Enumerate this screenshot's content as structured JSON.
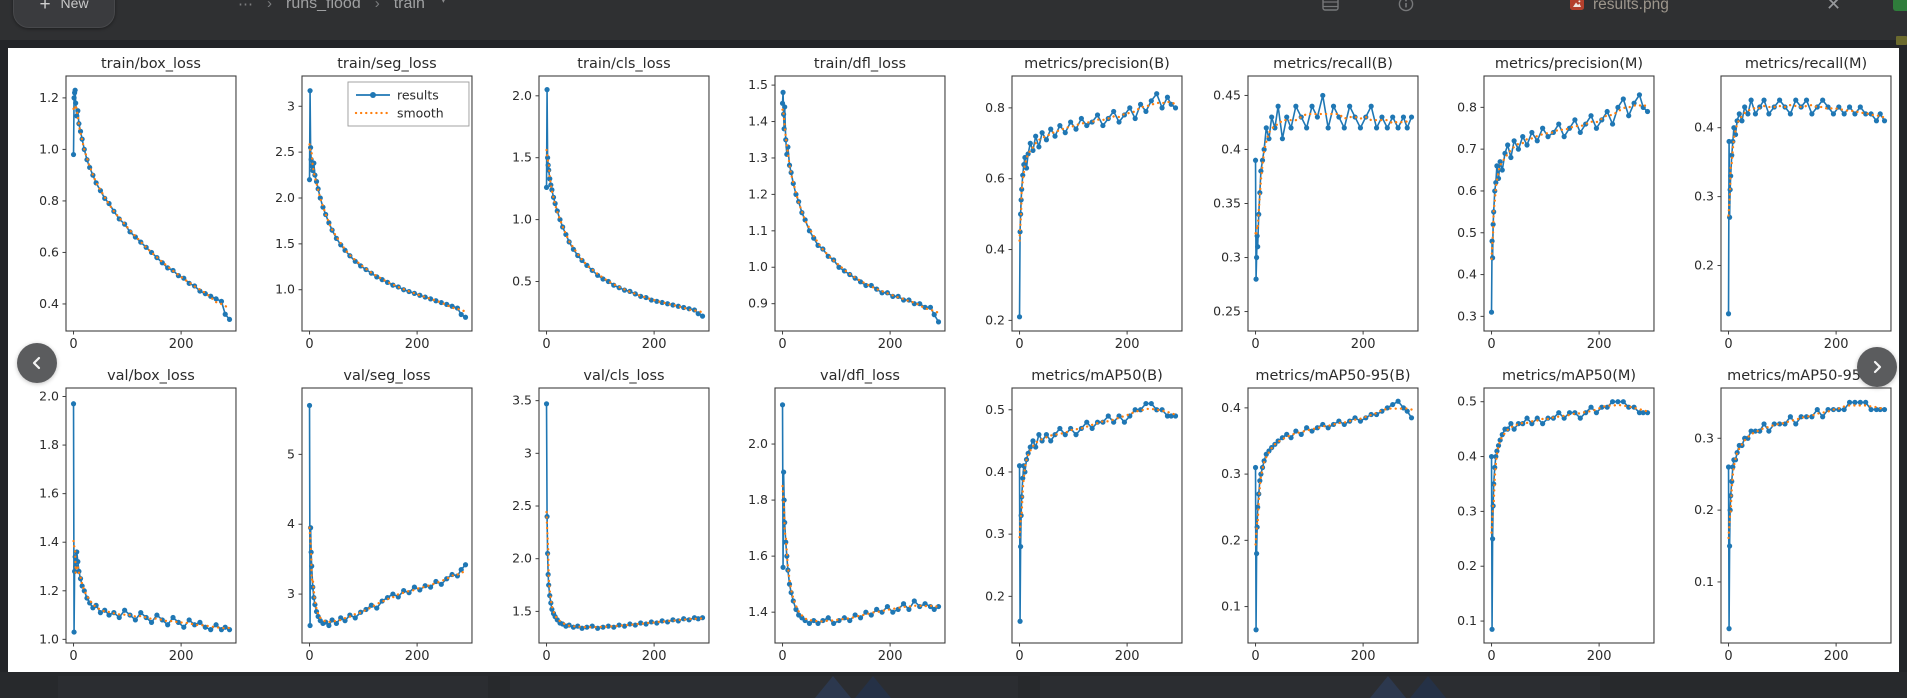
{
  "window": {
    "topbar": {
      "new_button_label": "New",
      "plus_glyph": "+",
      "breadcrumb_ellipsis": "⋯",
      "breadcrumb_separator": "›",
      "breadcrumb_items": [
        "runs_flood",
        "train"
      ],
      "breadcrumb_caret": "▾",
      "filename": "results.png",
      "close_glyph": "✕"
    }
  },
  "colors": {
    "results_line": "#1f77b4",
    "smooth_line": "#ff7f0e",
    "plot_text": "#2b2b2b",
    "spine": "#3f3f3f",
    "panel_bg": "#ffffff",
    "page_bg": "#232528",
    "topbar_bg": "#2f3032",
    "nav_circle": "#5b5c5e"
  },
  "legend": {
    "results_label": "results",
    "smooth_label": "smooth"
  },
  "epochs": [
    0,
    1,
    2,
    3,
    4,
    6,
    8,
    10,
    13,
    16,
    20,
    25,
    30,
    36,
    42,
    50,
    58,
    66,
    75,
    85,
    95,
    105,
    115,
    125,
    135,
    145,
    155,
    165,
    175,
    185,
    195,
    205,
    215,
    225,
    235,
    245,
    255,
    265,
    275,
    282,
    290
  ],
  "chart_data": [
    {
      "type": "line",
      "title": "train/box_loss",
      "ylim": [
        0.295,
        1.285
      ],
      "yticks": [
        0.4,
        0.6,
        0.8,
        1.0,
        1.2
      ],
      "xticks": [
        0,
        200
      ],
      "xlim": [
        -14,
        302
      ],
      "legend": false,
      "values": [
        0.98,
        1.2,
        1.22,
        1.23,
        1.18,
        1.13,
        1.15,
        1.1,
        1.07,
        1.04,
        1.0,
        0.96,
        0.93,
        0.9,
        0.87,
        0.84,
        0.81,
        0.79,
        0.76,
        0.73,
        0.71,
        0.68,
        0.66,
        0.64,
        0.62,
        0.6,
        0.58,
        0.56,
        0.54,
        0.53,
        0.51,
        0.5,
        0.48,
        0.47,
        0.45,
        0.44,
        0.43,
        0.42,
        0.41,
        0.36,
        0.34
      ]
    },
    {
      "type": "line",
      "title": "train/seg_loss",
      "ylim": [
        0.55,
        3.33
      ],
      "yticks": [
        1.0,
        1.5,
        2.0,
        2.5,
        3.0
      ],
      "xticks": [
        0,
        200
      ],
      "xlim": [
        -14,
        302
      ],
      "legend": true,
      "values": [
        2.2,
        3.17,
        2.55,
        2.42,
        2.35,
        2.3,
        2.38,
        2.25,
        2.18,
        2.1,
        2.0,
        1.9,
        1.82,
        1.73,
        1.65,
        1.56,
        1.49,
        1.43,
        1.37,
        1.31,
        1.26,
        1.22,
        1.18,
        1.14,
        1.11,
        1.08,
        1.05,
        1.03,
        1.0,
        0.98,
        0.96,
        0.94,
        0.92,
        0.9,
        0.88,
        0.86,
        0.84,
        0.82,
        0.8,
        0.73,
        0.7
      ]
    },
    {
      "type": "line",
      "title": "train/cls_loss",
      "ylim": [
        0.1,
        2.16
      ],
      "yticks": [
        0.5,
        1.0,
        1.5,
        2.0
      ],
      "xticks": [
        0,
        200
      ],
      "xlim": [
        -14,
        302
      ],
      "legend": false,
      "values": [
        1.26,
        2.05,
        1.5,
        1.44,
        1.4,
        1.33,
        1.28,
        1.24,
        1.18,
        1.13,
        1.07,
        1.0,
        0.94,
        0.88,
        0.82,
        0.76,
        0.71,
        0.67,
        0.63,
        0.59,
        0.55,
        0.52,
        0.5,
        0.47,
        0.45,
        0.43,
        0.42,
        0.4,
        0.38,
        0.37,
        0.35,
        0.34,
        0.33,
        0.32,
        0.31,
        0.3,
        0.29,
        0.28,
        0.27,
        0.24,
        0.22
      ]
    },
    {
      "type": "line",
      "title": "train/dfl_loss",
      "ylim": [
        0.825,
        1.525
      ],
      "yticks": [
        0.9,
        1.0,
        1.1,
        1.2,
        1.3,
        1.4,
        1.5
      ],
      "xticks": [
        0,
        200
      ],
      "xlim": [
        -14,
        302
      ],
      "legend": false,
      "values": [
        1.45,
        1.48,
        1.42,
        1.38,
        1.44,
        1.35,
        1.31,
        1.33,
        1.28,
        1.26,
        1.23,
        1.2,
        1.18,
        1.15,
        1.13,
        1.1,
        1.08,
        1.06,
        1.05,
        1.03,
        1.02,
        1.0,
        0.99,
        0.98,
        0.97,
        0.96,
        0.95,
        0.95,
        0.94,
        0.93,
        0.93,
        0.92,
        0.92,
        0.91,
        0.91,
        0.9,
        0.9,
        0.89,
        0.89,
        0.87,
        0.85
      ]
    },
    {
      "type": "line",
      "title": "metrics/precision(B)",
      "ylim": [
        0.17,
        0.89
      ],
      "yticks": [
        0.2,
        0.4,
        0.6,
        0.8
      ],
      "xticks": [
        0,
        200
      ],
      "xlim": [
        -14,
        302
      ],
      "legend": false,
      "values": [
        0.21,
        0.45,
        0.5,
        0.54,
        0.57,
        0.61,
        0.64,
        0.66,
        0.63,
        0.67,
        0.7,
        0.68,
        0.72,
        0.69,
        0.73,
        0.71,
        0.74,
        0.72,
        0.75,
        0.73,
        0.76,
        0.74,
        0.77,
        0.75,
        0.76,
        0.78,
        0.75,
        0.77,
        0.79,
        0.76,
        0.78,
        0.8,
        0.77,
        0.81,
        0.79,
        0.82,
        0.84,
        0.8,
        0.83,
        0.81,
        0.8
      ]
    },
    {
      "type": "line",
      "title": "metrics/recall(B)",
      "ylim": [
        0.232,
        0.468
      ],
      "yticks": [
        0.25,
        0.3,
        0.35,
        0.4,
        0.45
      ],
      "xticks": [
        0,
        200
      ],
      "xlim": [
        -14,
        302
      ],
      "legend": false,
      "values": [
        0.39,
        0.28,
        0.3,
        0.32,
        0.31,
        0.34,
        0.36,
        0.38,
        0.39,
        0.4,
        0.42,
        0.41,
        0.43,
        0.42,
        0.44,
        0.41,
        0.43,
        0.42,
        0.44,
        0.43,
        0.42,
        0.44,
        0.43,
        0.45,
        0.42,
        0.44,
        0.43,
        0.42,
        0.44,
        0.43,
        0.42,
        0.43,
        0.44,
        0.42,
        0.43,
        0.42,
        0.43,
        0.42,
        0.43,
        0.42,
        0.43
      ]
    },
    {
      "type": "line",
      "title": "metrics/precision(M)",
      "ylim": [
        0.265,
        0.875
      ],
      "yticks": [
        0.3,
        0.4,
        0.5,
        0.6,
        0.7,
        0.8
      ],
      "xticks": [
        0,
        200
      ],
      "xlim": [
        -14,
        302
      ],
      "legend": false,
      "values": [
        0.31,
        0.48,
        0.44,
        0.52,
        0.55,
        0.6,
        0.62,
        0.66,
        0.63,
        0.67,
        0.65,
        0.69,
        0.71,
        0.68,
        0.72,
        0.7,
        0.73,
        0.71,
        0.74,
        0.72,
        0.75,
        0.73,
        0.74,
        0.76,
        0.73,
        0.75,
        0.77,
        0.74,
        0.76,
        0.78,
        0.75,
        0.77,
        0.79,
        0.76,
        0.8,
        0.82,
        0.78,
        0.81,
        0.83,
        0.8,
        0.79
      ]
    },
    {
      "type": "line",
      "title": "metrics/recall(M)",
      "ylim": [
        0.105,
        0.475
      ],
      "yticks": [
        0.2,
        0.3,
        0.4
      ],
      "xticks": [
        0,
        200
      ],
      "xlim": [
        -14,
        302
      ],
      "legend": false,
      "values": [
        0.13,
        0.38,
        0.27,
        0.31,
        0.33,
        0.36,
        0.38,
        0.4,
        0.39,
        0.41,
        0.42,
        0.41,
        0.43,
        0.42,
        0.44,
        0.42,
        0.43,
        0.44,
        0.42,
        0.43,
        0.44,
        0.43,
        0.42,
        0.44,
        0.43,
        0.44,
        0.42,
        0.43,
        0.44,
        0.43,
        0.42,
        0.43,
        0.42,
        0.43,
        0.42,
        0.43,
        0.42,
        0.42,
        0.41,
        0.42,
        0.41
      ]
    },
    {
      "type": "line",
      "title": "val/box_loss",
      "ylim": [
        0.985,
        2.035
      ],
      "yticks": [
        1.0,
        1.2,
        1.4,
        1.6,
        1.8,
        2.0
      ],
      "xticks": [
        0,
        200
      ],
      "xlim": [
        -14,
        302
      ],
      "legend": false,
      "values": [
        1.97,
        1.03,
        1.28,
        1.34,
        1.3,
        1.36,
        1.32,
        1.28,
        1.25,
        1.22,
        1.2,
        1.17,
        1.15,
        1.13,
        1.14,
        1.11,
        1.12,
        1.1,
        1.11,
        1.09,
        1.12,
        1.1,
        1.08,
        1.11,
        1.09,
        1.07,
        1.1,
        1.08,
        1.06,
        1.09,
        1.07,
        1.05,
        1.08,
        1.06,
        1.07,
        1.05,
        1.04,
        1.06,
        1.04,
        1.05,
        1.04
      ]
    },
    {
      "type": "line",
      "title": "val/seg_loss",
      "ylim": [
        2.3,
        5.95
      ],
      "yticks": [
        3,
        4,
        5
      ],
      "xticks": [
        0,
        200
      ],
      "xlim": [
        -14,
        302
      ],
      "legend": false,
      "values": [
        5.7,
        2.55,
        3.95,
        3.6,
        3.4,
        3.1,
        2.95,
        2.85,
        2.75,
        2.68,
        2.62,
        2.58,
        2.6,
        2.55,
        2.63,
        2.58,
        2.66,
        2.62,
        2.7,
        2.66,
        2.74,
        2.78,
        2.84,
        2.8,
        2.9,
        2.95,
        3.0,
        2.96,
        3.05,
        3.02,
        3.1,
        3.06,
        3.12,
        3.1,
        3.18,
        3.14,
        3.22,
        3.28,
        3.26,
        3.35,
        3.42
      ]
    },
    {
      "type": "line",
      "title": "val/cls_loss",
      "ylim": [
        1.2,
        3.62
      ],
      "yticks": [
        1.5,
        2.0,
        2.5,
        3.0,
        3.5
      ],
      "xticks": [
        0,
        200
      ],
      "xlim": [
        -14,
        302
      ],
      "legend": false,
      "values": [
        3.47,
        2.4,
        2.05,
        1.85,
        1.75,
        1.65,
        1.58,
        1.52,
        1.48,
        1.45,
        1.42,
        1.39,
        1.38,
        1.36,
        1.37,
        1.35,
        1.36,
        1.34,
        1.35,
        1.36,
        1.34,
        1.35,
        1.36,
        1.35,
        1.37,
        1.36,
        1.38,
        1.37,
        1.39,
        1.38,
        1.4,
        1.39,
        1.41,
        1.4,
        1.42,
        1.41,
        1.43,
        1.42,
        1.44,
        1.43,
        1.44
      ]
    },
    {
      "type": "line",
      "title": "val/dfl_loss",
      "ylim": [
        1.29,
        2.2
      ],
      "yticks": [
        1.4,
        1.6,
        1.8,
        2.0
      ],
      "xticks": [
        0,
        200
      ],
      "xlim": [
        -14,
        302
      ],
      "legend": false,
      "values": [
        2.14,
        1.56,
        1.9,
        1.8,
        1.72,
        1.65,
        1.6,
        1.55,
        1.5,
        1.47,
        1.44,
        1.41,
        1.39,
        1.38,
        1.37,
        1.36,
        1.37,
        1.36,
        1.37,
        1.38,
        1.36,
        1.37,
        1.38,
        1.37,
        1.39,
        1.38,
        1.4,
        1.39,
        1.41,
        1.4,
        1.42,
        1.4,
        1.41,
        1.43,
        1.41,
        1.44,
        1.42,
        1.43,
        1.42,
        1.41,
        1.42
      ]
    },
    {
      "type": "line",
      "title": "metrics/mAP50(B)",
      "ylim": [
        0.125,
        0.535
      ],
      "yticks": [
        0.2,
        0.3,
        0.4,
        0.5
      ],
      "xticks": [
        0,
        200
      ],
      "xlim": [
        -14,
        302
      ],
      "legend": false,
      "values": [
        0.41,
        0.16,
        0.28,
        0.33,
        0.36,
        0.39,
        0.41,
        0.4,
        0.42,
        0.43,
        0.44,
        0.45,
        0.44,
        0.46,
        0.45,
        0.46,
        0.45,
        0.46,
        0.47,
        0.46,
        0.47,
        0.46,
        0.47,
        0.48,
        0.47,
        0.48,
        0.48,
        0.49,
        0.48,
        0.49,
        0.48,
        0.49,
        0.5,
        0.5,
        0.51,
        0.51,
        0.5,
        0.5,
        0.49,
        0.49,
        0.49
      ]
    },
    {
      "type": "line",
      "title": "metrics/mAP50-95(B)",
      "ylim": [
        0.045,
        0.43
      ],
      "yticks": [
        0.1,
        0.2,
        0.3,
        0.4
      ],
      "xticks": [
        0,
        200
      ],
      "xlim": [
        -14,
        302
      ],
      "legend": false,
      "values": [
        0.31,
        0.065,
        0.18,
        0.22,
        0.25,
        0.27,
        0.29,
        0.3,
        0.31,
        0.32,
        0.33,
        0.335,
        0.34,
        0.345,
        0.35,
        0.355,
        0.36,
        0.355,
        0.365,
        0.36,
        0.37,
        0.365,
        0.37,
        0.375,
        0.37,
        0.375,
        0.38,
        0.375,
        0.38,
        0.385,
        0.38,
        0.385,
        0.39,
        0.39,
        0.395,
        0.4,
        0.405,
        0.41,
        0.4,
        0.395,
        0.385
      ]
    },
    {
      "type": "line",
      "title": "metrics/mAP50(M)",
      "ylim": [
        0.06,
        0.525
      ],
      "yticks": [
        0.1,
        0.2,
        0.3,
        0.4,
        0.5
      ],
      "xticks": [
        0,
        200
      ],
      "xlim": [
        -14,
        302
      ],
      "legend": false,
      "values": [
        0.4,
        0.085,
        0.25,
        0.31,
        0.35,
        0.38,
        0.4,
        0.41,
        0.42,
        0.43,
        0.44,
        0.45,
        0.45,
        0.46,
        0.45,
        0.46,
        0.46,
        0.47,
        0.46,
        0.47,
        0.46,
        0.47,
        0.47,
        0.48,
        0.47,
        0.48,
        0.48,
        0.47,
        0.48,
        0.49,
        0.48,
        0.49,
        0.49,
        0.5,
        0.5,
        0.5,
        0.49,
        0.49,
        0.48,
        0.48,
        0.48
      ]
    },
    {
      "type": "line",
      "title": "metrics/mAP50-95(M)",
      "ylim": [
        0.015,
        0.37
      ],
      "yticks": [
        0.1,
        0.2,
        0.3
      ],
      "xticks": [
        0,
        200
      ],
      "xlim": [
        -14,
        302
      ],
      "legend": false,
      "values": [
        0.26,
        0.035,
        0.15,
        0.2,
        0.22,
        0.24,
        0.26,
        0.27,
        0.27,
        0.28,
        0.29,
        0.29,
        0.3,
        0.3,
        0.31,
        0.31,
        0.31,
        0.32,
        0.31,
        0.32,
        0.32,
        0.32,
        0.33,
        0.32,
        0.33,
        0.33,
        0.33,
        0.34,
        0.33,
        0.34,
        0.34,
        0.34,
        0.34,
        0.35,
        0.35,
        0.35,
        0.35,
        0.34,
        0.34,
        0.34,
        0.34
      ]
    }
  ]
}
